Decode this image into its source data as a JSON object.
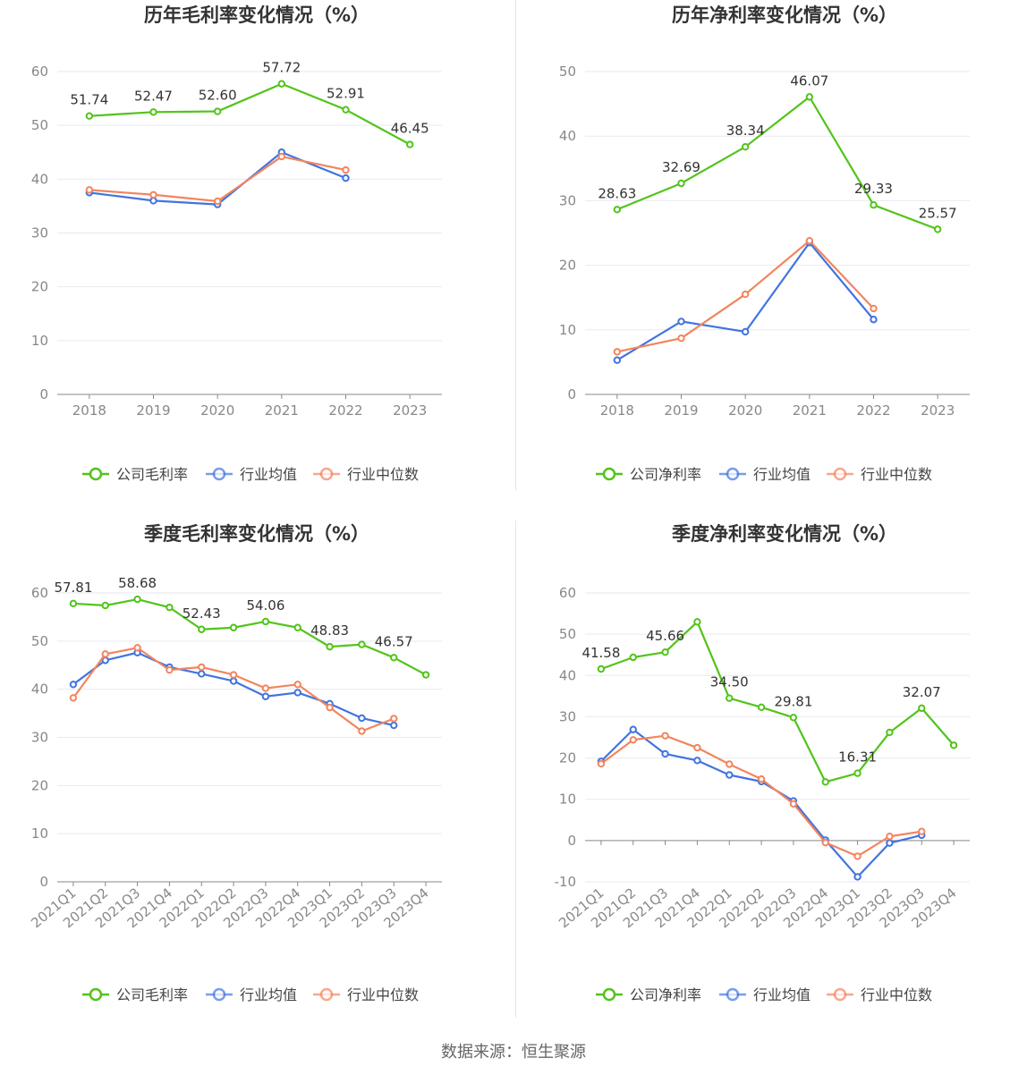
{
  "colors": {
    "company": "#52c41a",
    "industry_avg": "#4174e0",
    "industry_median": "#f2855e",
    "grid": "#e8eaf0",
    "axis": "#888888"
  },
  "legend_labels": {
    "gross": [
      "公司毛利率",
      "行业均值",
      "行业中位数"
    ],
    "net": [
      "公司净利率",
      "行业均值",
      "行业中位数"
    ]
  },
  "source_text": "数据来源：恒生聚源",
  "chart_data": [
    {
      "type": "line",
      "title": "历年毛利率变化情况（%）",
      "categories": [
        "2018",
        "2019",
        "2020",
        "2021",
        "2022",
        "2023"
      ],
      "ylim": [
        0,
        60
      ],
      "yticks": [
        0,
        10,
        20,
        30,
        40,
        50,
        60
      ],
      "grid": true,
      "legend_position": "bottom",
      "series": [
        {
          "name": "公司毛利率",
          "values": [
            51.74,
            52.47,
            52.6,
            57.72,
            52.91,
            46.45
          ]
        },
        {
          "name": "行业均值",
          "values": [
            37.5,
            36.0,
            35.3,
            45.0,
            40.2,
            null
          ]
        },
        {
          "name": "行业中位数",
          "values": [
            38.0,
            37.1,
            35.9,
            44.2,
            41.7,
            null
          ]
        }
      ],
      "data_labels": [
        {
          "text": "51.74",
          "index": 0
        },
        {
          "text": "52.47",
          "index": 1
        },
        {
          "text": "52.60",
          "index": 2
        },
        {
          "text": "57.72",
          "index": 3
        },
        {
          "text": "52.91",
          "index": 4
        },
        {
          "text": "46.45",
          "index": 5
        }
      ]
    },
    {
      "type": "line",
      "title": "历年净利率变化情况（%）",
      "categories": [
        "2018",
        "2019",
        "2020",
        "2021",
        "2022",
        "2023"
      ],
      "ylim": [
        0,
        50
      ],
      "yticks": [
        0,
        10,
        20,
        30,
        40,
        50
      ],
      "grid": true,
      "legend_position": "bottom",
      "series": [
        {
          "name": "公司净利率",
          "values": [
            28.63,
            32.69,
            38.34,
            46.07,
            29.33,
            25.57
          ]
        },
        {
          "name": "行业均值",
          "values": [
            5.3,
            11.3,
            9.7,
            23.5,
            11.6,
            null
          ]
        },
        {
          "name": "行业中位数",
          "values": [
            6.6,
            8.7,
            15.5,
            23.8,
            13.3,
            null
          ]
        }
      ],
      "data_labels": [
        {
          "text": "28.63",
          "index": 0
        },
        {
          "text": "32.69",
          "index": 1
        },
        {
          "text": "38.34",
          "index": 2
        },
        {
          "text": "46.07",
          "index": 3
        },
        {
          "text": "29.33",
          "index": 4
        },
        {
          "text": "25.57",
          "index": 5
        }
      ]
    },
    {
      "type": "line",
      "title": "季度毛利率变化情况（%）",
      "categories": [
        "2021Q1",
        "2021Q2",
        "2021Q3",
        "2021Q4",
        "2022Q1",
        "2022Q2",
        "2022Q3",
        "2022Q4",
        "2023Q1",
        "2023Q2",
        "2023Q3",
        "2023Q4"
      ],
      "ylim": [
        0,
        60
      ],
      "yticks": [
        0,
        10,
        20,
        30,
        40,
        50,
        60
      ],
      "grid": true,
      "legend_position": "bottom",
      "series": [
        {
          "name": "公司毛利率",
          "values": [
            57.81,
            57.4,
            58.68,
            57.0,
            52.43,
            52.8,
            54.06,
            52.8,
            48.83,
            49.3,
            46.57,
            43.0
          ]
        },
        {
          "name": "行业均值",
          "values": [
            41.0,
            46.0,
            47.6,
            44.6,
            43.2,
            41.7,
            38.5,
            39.3,
            37.0,
            34.0,
            32.5,
            null
          ]
        },
        {
          "name": "行业中位数",
          "values": [
            38.2,
            47.3,
            48.6,
            44.0,
            44.6,
            43.0,
            40.2,
            41.0,
            36.2,
            31.3,
            33.9,
            null
          ]
        }
      ],
      "data_labels": [
        {
          "text": "57.81",
          "index": 0
        },
        {
          "text": "58.68",
          "index": 2
        },
        {
          "text": "52.43",
          "index": 4
        },
        {
          "text": "54.06",
          "index": 6
        },
        {
          "text": "48.83",
          "index": 8
        },
        {
          "text": "46.57",
          "index": 10
        }
      ]
    },
    {
      "type": "line",
      "title": "季度净利率变化情况（%）",
      "categories": [
        "2021Q1",
        "2021Q2",
        "2021Q3",
        "2021Q4",
        "2022Q1",
        "2022Q2",
        "2022Q3",
        "2022Q4",
        "2023Q1",
        "2023Q2",
        "2023Q3",
        "2023Q4"
      ],
      "ylim": [
        -10,
        60
      ],
      "yticks": [
        -10,
        0,
        10,
        20,
        30,
        40,
        50,
        60
      ],
      "grid": true,
      "legend_position": "bottom",
      "series": [
        {
          "name": "公司净利率",
          "values": [
            41.58,
            44.4,
            45.66,
            53.0,
            34.5,
            32.3,
            29.81,
            14.2,
            16.31,
            26.2,
            32.07,
            23.1
          ]
        },
        {
          "name": "行业均值",
          "values": [
            19.2,
            26.9,
            21.0,
            19.4,
            15.9,
            14.3,
            9.6,
            0.1,
            -8.8,
            -0.6,
            1.3,
            null
          ]
        },
        {
          "name": "行业中位数",
          "values": [
            18.6,
            24.4,
            25.4,
            22.5,
            18.5,
            14.9,
            8.9,
            -0.5,
            -3.8,
            1.0,
            2.2,
            null
          ]
        }
      ],
      "data_labels": [
        {
          "text": "41.58",
          "index": 0
        },
        {
          "text": "45.66",
          "index": 2
        },
        {
          "text": "34.50",
          "index": 4
        },
        {
          "text": "29.81",
          "index": 6
        },
        {
          "text": "16.31",
          "index": 8
        },
        {
          "text": "32.07",
          "index": 10
        }
      ]
    }
  ]
}
